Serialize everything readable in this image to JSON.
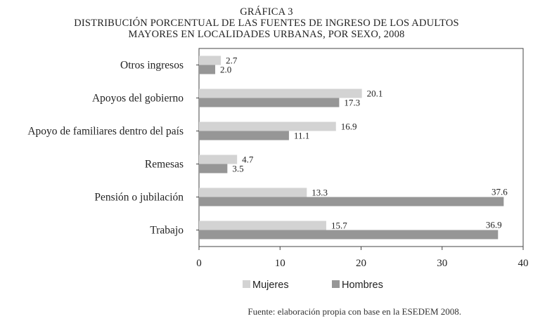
{
  "title": {
    "line1": "GRÁFICA 3",
    "line2": "DISTRIBUCIÓN PORCENTUAL DE LAS FUENTES DE INGRESO DE LOS ADULTOS",
    "line3": "MAYORES EN LOCALIDADES URBANAS, POR SEXO, 2008"
  },
  "source": "Fuente: elaboración propia con base en la ESEDEM 2008.",
  "colors": {
    "mujeres": "#d3d3d3",
    "hombres": "#969696",
    "axis": "#444444",
    "text": "#222222"
  },
  "chart_data": {
    "type": "bar",
    "orientation": "horizontal",
    "categories": [
      "Otros ingresos",
      "Apoyos del gobierno",
      "Apoyo de  familiares dentro del país",
      "Remesas",
      "Pensión o jubilación",
      "Trabajo"
    ],
    "series": [
      {
        "name": "Mujeres",
        "values": [
          2.7,
          20.1,
          16.9,
          4.7,
          13.3,
          15.7
        ]
      },
      {
        "name": "Hombres",
        "values": [
          2.0,
          17.3,
          11.1,
          3.5,
          37.6,
          36.9
        ]
      }
    ],
    "data_labels": {
      "Mujeres": [
        "2.7",
        "20.1",
        "16.9",
        "4.7",
        "13.3",
        "15.7"
      ],
      "Hombres": [
        "2.0",
        "17.3",
        "11.1",
        "3.5",
        "37.6",
        "36.9"
      ]
    },
    "xlim": [
      0,
      40
    ],
    "xticks": [
      0,
      10,
      20,
      30,
      40
    ],
    "xtick_labels": [
      "0",
      "10",
      "20",
      "30",
      "40"
    ],
    "legend": "bottom",
    "grid": false
  }
}
